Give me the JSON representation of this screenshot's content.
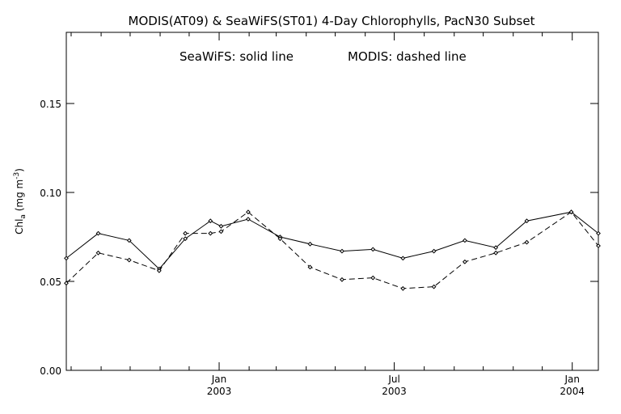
{
  "chart_data": {
    "type": "line",
    "title": "MODIS(AT09) & SeaWiFS(ST01) 4-Day Chlorophylls, PacN30 Subset",
    "annotations": [
      "SeaWiFS: solid line",
      "MODIS: dashed line"
    ],
    "ylabel": "Chl_a (mg m^-3)",
    "ylabel_parts": {
      "main": "Chl",
      "sub": "a",
      "unit_open": " (mg m",
      "sup": "-3",
      "unit_close": ")"
    },
    "xlabel": "",
    "xlim": [
      "2002-07-27",
      "2004-01-28"
    ],
    "ylim": [
      0.0,
      0.19
    ],
    "yticks": [
      0.0,
      0.05,
      0.1,
      0.15
    ],
    "ytick_labels": [
      "0.00",
      "0.05",
      "0.10",
      "0.15"
    ],
    "major_xticks": [
      {
        "date": "2003-01-01",
        "month": "Jan",
        "year": "2003"
      },
      {
        "date": "2003-07-01",
        "month": "Jul",
        "year": "2003"
      },
      {
        "date": "2004-01-01",
        "month": "Jan",
        "year": "2004"
      }
    ],
    "minor_xticks": [
      "2002-08-01",
      "2002-09-01",
      "2002-10-01",
      "2002-11-01",
      "2002-12-01",
      "2003-02-01",
      "2003-03-01",
      "2003-04-01",
      "2003-05-01",
      "2003-06-01",
      "2003-08-01",
      "2003-09-01",
      "2003-10-01",
      "2003-11-01",
      "2003-12-01"
    ],
    "grid": false,
    "series": [
      {
        "name": "SeaWiFS",
        "style": "solid",
        "color": "#000000",
        "x": [
          "2002-07-27",
          "2002-08-29",
          "2002-09-30",
          "2002-10-31",
          "2002-11-27",
          "2002-12-23",
          "2003-01-03",
          "2003-01-31",
          "2003-03-05",
          "2003-04-05",
          "2003-05-08",
          "2003-06-09",
          "2003-07-10",
          "2003-08-11",
          "2003-09-12",
          "2003-10-14",
          "2003-11-15",
          "2003-12-31",
          "2004-01-28"
        ],
        "values": [
          0.063,
          0.077,
          0.073,
          0.057,
          0.074,
          0.084,
          0.081,
          0.085,
          0.075,
          0.071,
          0.067,
          0.068,
          0.063,
          0.067,
          0.073,
          0.069,
          0.084,
          0.089,
          0.077
        ]
      },
      {
        "name": "MODIS",
        "style": "dashed",
        "color": "#000000",
        "x": [
          "2002-07-27",
          "2002-08-29",
          "2002-09-30",
          "2002-10-31",
          "2002-11-27",
          "2002-12-23",
          "2003-01-03",
          "2003-01-31",
          "2003-03-05",
          "2003-04-05",
          "2003-05-08",
          "2003-06-09",
          "2003-07-10",
          "2003-08-11",
          "2003-09-12",
          "2003-10-14",
          "2003-11-15",
          "2003-12-31",
          "2004-01-28"
        ],
        "values": [
          0.049,
          0.066,
          0.062,
          0.056,
          0.077,
          0.077,
          0.078,
          0.089,
          0.074,
          0.058,
          0.051,
          0.052,
          0.046,
          0.047,
          0.061,
          0.066,
          0.072,
          0.089,
          0.07
        ]
      }
    ]
  }
}
